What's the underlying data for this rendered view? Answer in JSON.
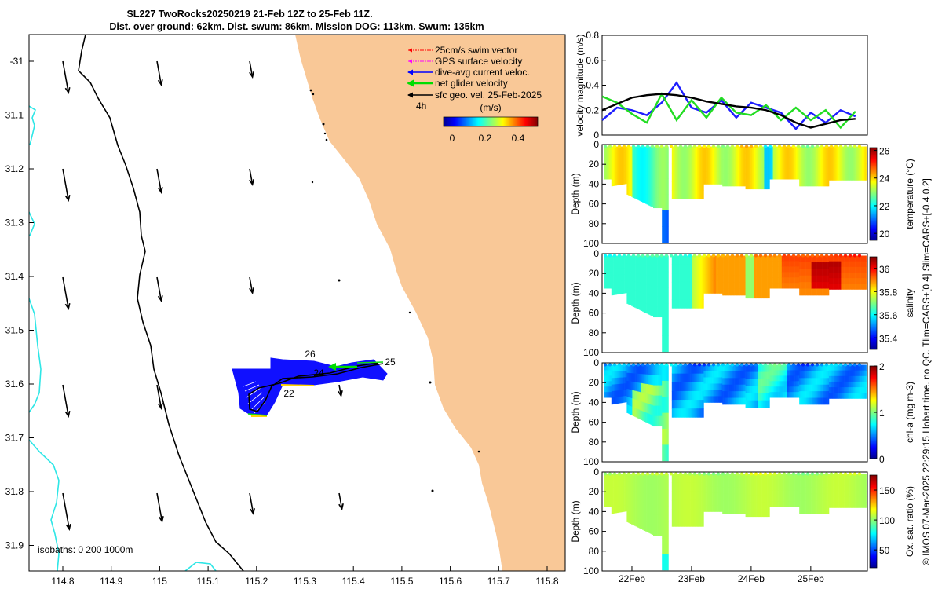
{
  "title": {
    "line1": "SL227 TwoRocks20250219 21-Feb 12Z to 25-Feb 11Z.",
    "line2": "Dist. over ground: 62km. Dist. swum: 86km. Mission DOG: 113km. Swum: 135km"
  },
  "credit": "© IMOS 07-Mar-2025 22:29:15 Hobart time. no QC. Tlim=CARS+[0 4] Slim=CARS+[-0.4 0.2]",
  "colors": {
    "land": "#f9c897",
    "isobath": "#2ee6e6",
    "track": "#0000ff",
    "net": "#00dd00",
    "swim": "#ff0000",
    "gps": "#ff00ff",
    "current": "#0000ff",
    "geo": "#000000"
  },
  "map": {
    "xticks": [
      "114.8",
      "114.9",
      "115",
      "115.1",
      "115.2",
      "115.3",
      "115.4",
      "115.5",
      "115.6",
      "115.7",
      "115.8"
    ],
    "yticks": [
      "-31",
      "31.1",
      "31.2",
      "31.3",
      "31.4",
      "31.5",
      "31.6",
      "31.7",
      "31.8",
      "31.9"
    ],
    "legend": {
      "swim": "25cm/s swim vector",
      "gps": "GPS surface velocity",
      "current": "dive-avg current veloc.",
      "net": "net glider velocity",
      "geo": "sfc geo. vel. 25-Feb-2025"
    },
    "scale_label": "4h",
    "colorbar_unit": "(m/s)",
    "colorbar_ticks": [
      "0",
      "0.2",
      "0.4"
    ],
    "isobaths_label": "isobaths: 0   200  1000m",
    "day_labels": [
      "22",
      "24",
      "25",
      "26"
    ]
  },
  "chart_data": [
    {
      "type": "line",
      "title": "",
      "ylabel": "velocity magnitude (m/s)",
      "ylim": [
        0,
        0.8
      ],
      "yticks": [
        "0",
        "0.2",
        "0.4",
        "0.6",
        "0.8"
      ],
      "x": [
        21.5,
        21.75,
        22.0,
        22.25,
        22.5,
        22.75,
        23.0,
        23.25,
        23.5,
        23.75,
        24.0,
        24.25,
        24.5,
        24.75,
        25.0,
        25.25,
        25.5,
        25.75
      ],
      "series": [
        {
          "name": "dive-avg current veloc.",
          "color": "#1e1eff",
          "values": [
            0.12,
            0.22,
            0.2,
            0.16,
            0.26,
            0.42,
            0.22,
            0.18,
            0.28,
            0.14,
            0.26,
            0.22,
            0.18,
            0.05,
            0.18,
            0.1,
            0.2,
            0.15
          ]
        },
        {
          "name": "net glider velocity",
          "color": "#22dd22",
          "values": [
            0.31,
            0.26,
            0.17,
            0.1,
            0.33,
            0.12,
            0.28,
            0.14,
            0.3,
            0.18,
            0.16,
            0.24,
            0.12,
            0.22,
            0.12,
            0.2,
            0.06,
            0.19
          ]
        },
        {
          "name": "sfc geo. vel.",
          "color": "#000000",
          "values": [
            0.2,
            0.25,
            0.3,
            0.32,
            0.33,
            0.32,
            0.3,
            0.27,
            0.25,
            0.23,
            0.22,
            0.2,
            0.16,
            0.1,
            0.06,
            0.09,
            0.12,
            0.13
          ]
        }
      ]
    },
    {
      "type": "heatmap",
      "ylabel": "Depth (m)",
      "clabel": "temperature (°C)",
      "yticks": [
        "0",
        "20",
        "40",
        "60",
        "80",
        "100"
      ],
      "cticks": [
        "20",
        "22",
        "24",
        "26"
      ],
      "clim": [
        19.5,
        26.2
      ],
      "base": 23.9
    },
    {
      "type": "heatmap",
      "ylabel": "Depth (m)",
      "clabel": "salinity",
      "yticks": [
        "0",
        "20",
        "40",
        "60",
        "80",
        "100"
      ],
      "cticks": [
        "35.4",
        "35.6",
        "35.8",
        "36"
      ],
      "clim": [
        35.3,
        36.1
      ],
      "base": 35.7
    },
    {
      "type": "heatmap",
      "ylabel": "Depth (m)",
      "clabel": "chl-a (mg m-3)",
      "yticks": [
        "0",
        "20",
        "40",
        "60",
        "80",
        "100"
      ],
      "cticks": [
        "0",
        "1",
        "2"
      ],
      "clim": [
        0,
        2
      ],
      "base": 0.6
    },
    {
      "type": "heatmap",
      "ylabel": "Depth (m)",
      "clabel": "Ox. sat. ratio (%)",
      "yticks": [
        "0",
        "20",
        "40",
        "60",
        "80",
        "100"
      ],
      "cticks": [
        "50",
        "100",
        "150"
      ],
      "clim": [
        20,
        175
      ],
      "base": 108
    }
  ],
  "time_axis": {
    "ticks": [
      "22Feb",
      "23Feb",
      "24Feb",
      "25Feb"
    ],
    "range": [
      21.5,
      25.95
    ]
  }
}
